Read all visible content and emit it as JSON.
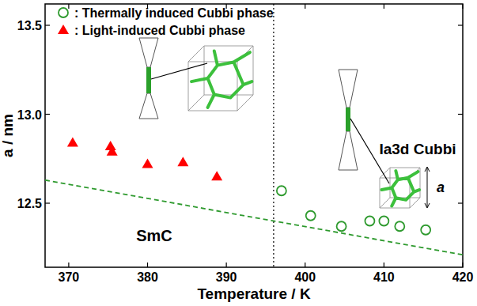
{
  "chart_data": {
    "type": "scatter",
    "x_label": "Temperature / K",
    "y_label": "a / nm",
    "xlim": [
      367,
      420
    ],
    "ylim": [
      12.14,
      13.62
    ],
    "xticks": [
      370,
      380,
      390,
      400,
      410,
      420
    ],
    "yticks": [
      12.5,
      {
        "value": 13,
        "label": "13.0"
      },
      13.5
    ],
    "legend": "top-left",
    "grid": false,
    "vline": 396,
    "annotations": [
      {
        "text": "SmC"
      },
      {
        "text": "Ia3d Cubbi"
      },
      {
        "text": "a"
      }
    ],
    "series": [
      {
        "name": ": Thermally induced Cubbi phase",
        "color": "#2e9a2e",
        "marker": "open-circle",
        "x": [
          397.0,
          400.7,
          404.6,
          408.2,
          410.0,
          412.0,
          415.3
        ],
        "values": [
          12.57,
          12.43,
          12.37,
          12.4,
          12.4,
          12.37,
          12.35
        ]
      },
      {
        "name": ": Light-induced Cubbi phase",
        "color": "#ff0000",
        "marker": "triangle",
        "x": [
          370.5,
          375.3,
          375.5,
          380.0,
          384.5,
          388.8
        ],
        "values": [
          12.84,
          12.82,
          12.79,
          12.72,
          12.73,
          12.65
        ]
      },
      {
        "type": "line",
        "line_style": "dashed",
        "color": "#2e9a2e",
        "x": [
          367,
          420
        ],
        "values": [
          12.63,
          12.21
        ]
      }
    ]
  }
}
